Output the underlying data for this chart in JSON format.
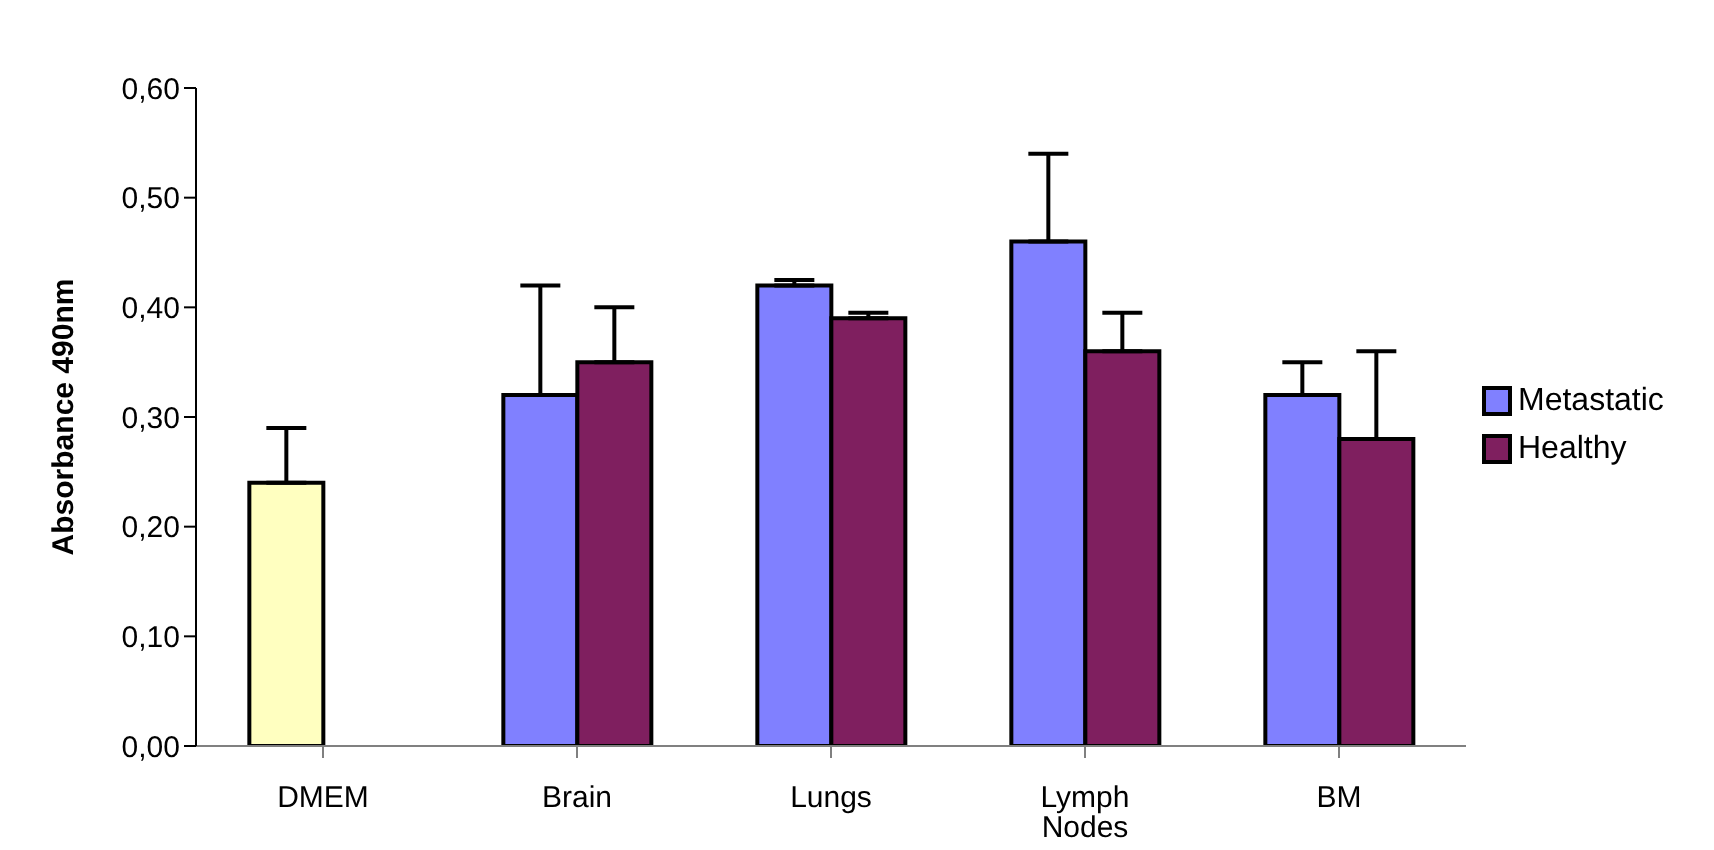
{
  "chart_data": {
    "type": "bar",
    "ylabel": "Absorbance 490nm",
    "categories": [
      "DMEM",
      "Brain",
      "Lungs",
      "Lymph Nodes",
      "BM"
    ],
    "series": [
      {
        "name": "Metastatic",
        "color": "#8080ff",
        "colors": [
          "#ffffc0",
          "#8080ff",
          "#8080ff",
          "#8080ff",
          "#8080ff"
        ],
        "values": [
          0.24,
          0.32,
          0.42,
          0.46,
          0.32
        ],
        "errors": [
          [
            0.24,
            0.29
          ],
          [
            0.32,
            0.42
          ],
          [
            0.42,
            0.425
          ],
          [
            0.46,
            0.54
          ],
          [
            0.32,
            0.35
          ]
        ]
      },
      {
        "name": "Healthy",
        "color": "#7f1f5f",
        "values": [
          0,
          0.35,
          0.39,
          0.36,
          0.28
        ],
        "errors": [
          null,
          [
            0.35,
            0.4
          ],
          [
            0.39,
            0.395
          ],
          [
            0.36,
            0.395
          ],
          [
            0.28,
            0.36
          ]
        ]
      }
    ],
    "ylim": [
      0,
      0.6
    ],
    "yticks": [
      {
        "value": 0,
        "label": "0,00"
      },
      {
        "value": 0.1,
        "label": "0,10"
      },
      {
        "value": 0.2,
        "label": "0,20"
      },
      {
        "value": 0.3,
        "label": "0,30"
      },
      {
        "value": 0.4,
        "label": "0,40"
      },
      {
        "value": 0.5,
        "label": "0,50"
      },
      {
        "value": 0.6,
        "label": "0,60"
      }
    ],
    "grid": false,
    "legend": "right"
  }
}
